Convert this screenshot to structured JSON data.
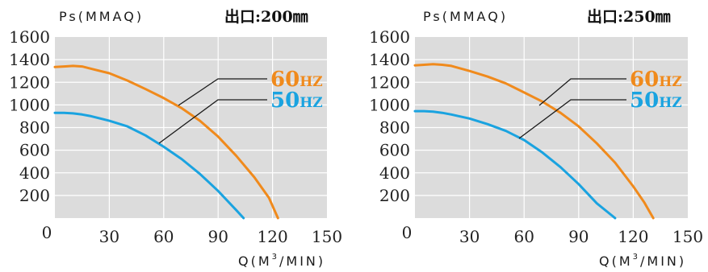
{
  "chart_data": [
    {
      "type": "line",
      "title": "出口:200㎜",
      "ylabel": "Ps(MMAQ)",
      "xlabel": "Q(M³/MIN)",
      "xlabel_main": "Q(M",
      "xlabel_sup": "3",
      "xlabel_tail": "/MIN)",
      "xlim": [
        0,
        150
      ],
      "ylim": [
        0,
        1600
      ],
      "xticks": [
        "0",
        "30",
        "60",
        "90",
        "120",
        "150"
      ],
      "yticks": [
        "200",
        "400",
        "600",
        "800",
        "1000",
        "1200",
        "1400",
        "1600"
      ],
      "grid": true,
      "series": [
        {
          "name": "60HZ",
          "name_main": "60",
          "name_unit": "HZ",
          "color": "#f08a1c",
          "x": [
            0,
            5,
            10,
            15,
            20,
            30,
            40,
            50,
            60,
            70,
            80,
            90,
            100,
            110,
            118,
            123
          ],
          "y": [
            1335,
            1340,
            1345,
            1340,
            1320,
            1280,
            1215,
            1140,
            1060,
            970,
            860,
            720,
            550,
            360,
            180,
            0
          ]
        },
        {
          "name": "50HZ",
          "name_main": "50",
          "name_unit": "HZ",
          "color": "#1aa3e0",
          "x": [
            0,
            5,
            10,
            15,
            20,
            30,
            40,
            50,
            60,
            70,
            80,
            90,
            100,
            104
          ],
          "y": [
            930,
            930,
            925,
            915,
            900,
            860,
            810,
            730,
            630,
            520,
            390,
            240,
            70,
            0
          ]
        }
      ]
    },
    {
      "type": "line",
      "title": "出口:250㎜",
      "ylabel": "Ps(MMAQ)",
      "xlabel": "Q(M³/MIN)",
      "xlabel_main": "Q(M",
      "xlabel_sup": "3",
      "xlabel_tail": "/MIN)",
      "xlim": [
        0,
        150
      ],
      "ylim": [
        0,
        1600
      ],
      "xticks": [
        "0",
        "30",
        "60",
        "90",
        "120",
        "150"
      ],
      "yticks": [
        "200",
        "400",
        "600",
        "800",
        "1000",
        "1200",
        "1400",
        "1600"
      ],
      "grid": true,
      "series": [
        {
          "name": "60HZ",
          "name_main": "60",
          "name_unit": "HZ",
          "color": "#f08a1c",
          "x": [
            0,
            5,
            10,
            15,
            20,
            30,
            40,
            50,
            60,
            70,
            80,
            90,
            100,
            110,
            120,
            126,
            131
          ],
          "y": [
            1350,
            1355,
            1360,
            1355,
            1345,
            1300,
            1250,
            1190,
            1110,
            1030,
            930,
            810,
            660,
            490,
            280,
            140,
            0
          ]
        },
        {
          "name": "50HZ",
          "name_main": "50",
          "name_unit": "HZ",
          "color": "#1aa3e0",
          "x": [
            0,
            5,
            10,
            15,
            20,
            30,
            40,
            50,
            60,
            70,
            80,
            90,
            100,
            110
          ],
          "y": [
            945,
            945,
            940,
            930,
            915,
            880,
            830,
            770,
            690,
            580,
            450,
            300,
            130,
            0
          ]
        }
      ]
    }
  ]
}
